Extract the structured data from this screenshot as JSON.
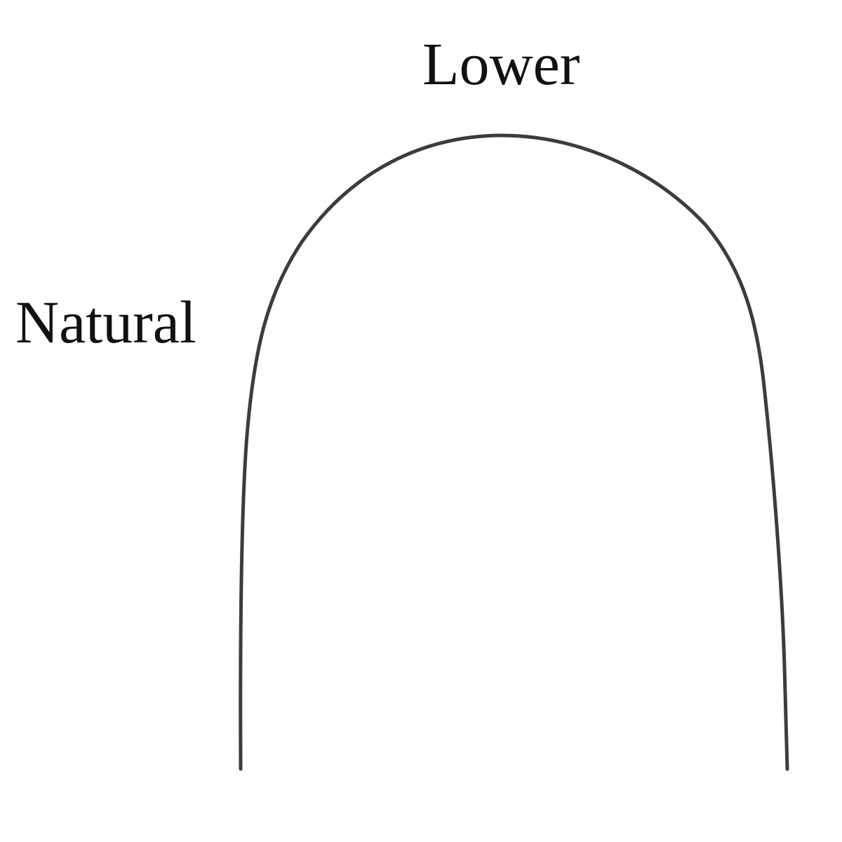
{
  "labels": {
    "arch_position": "Lower",
    "arch_form": "Natural"
  },
  "colors": {
    "wire": "#3a3d3c",
    "text": "#111111",
    "background": "#ffffff"
  }
}
